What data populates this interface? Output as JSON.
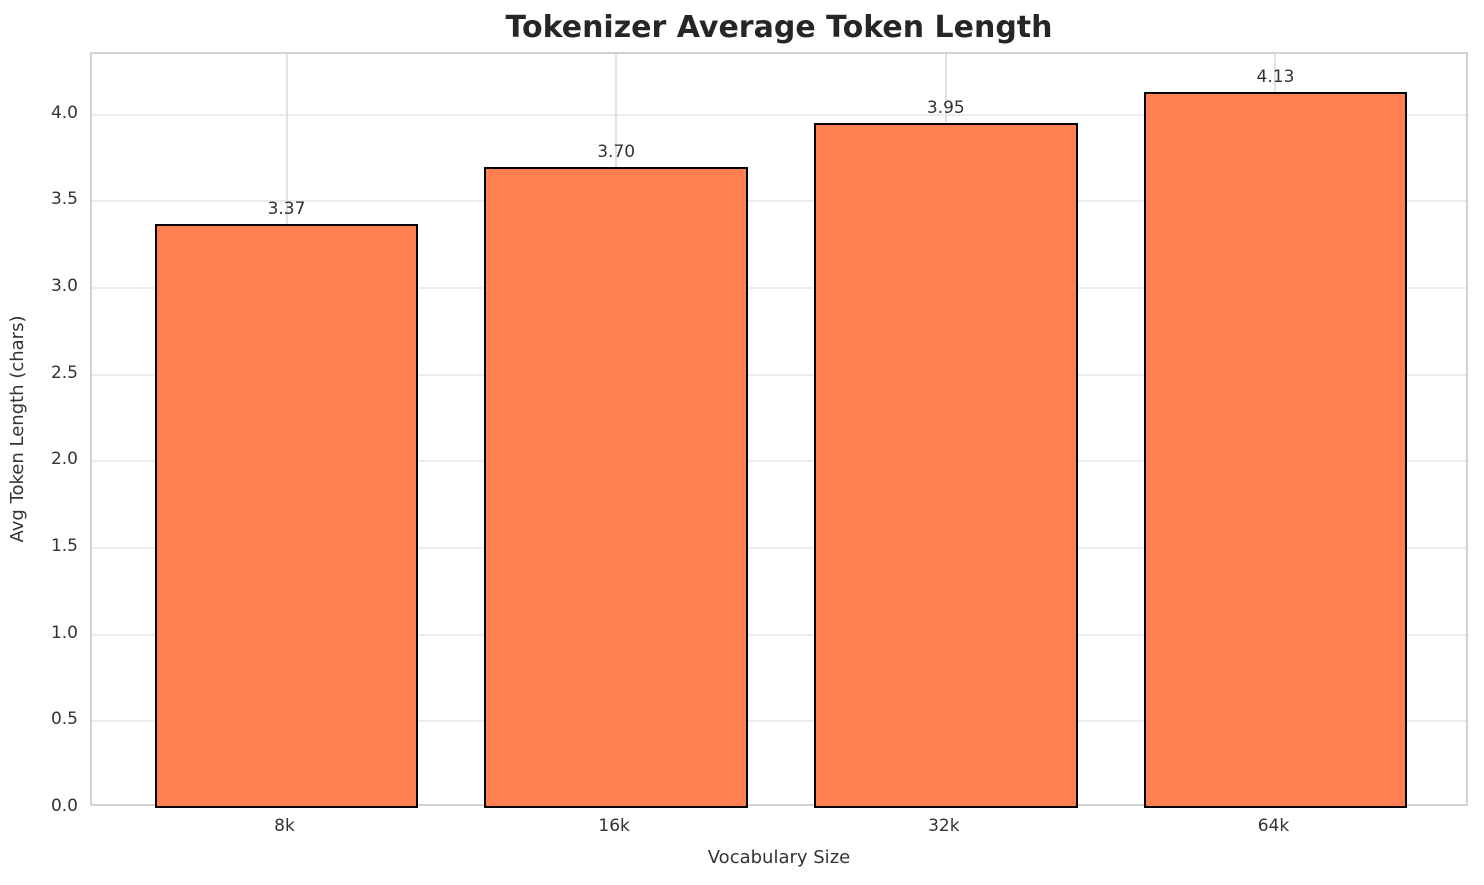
{
  "chart_data": {
    "type": "bar",
    "title": "Tokenizer Average Token Length",
    "xlabel": "Vocabulary Size",
    "ylabel": "Avg Token Length (chars)",
    "categories": [
      "8k",
      "16k",
      "32k",
      "64k"
    ],
    "values": [
      3.37,
      3.7,
      3.95,
      4.13
    ],
    "value_labels": [
      "3.37",
      "3.70",
      "3.95",
      "4.13"
    ],
    "yticks": [
      0.0,
      0.5,
      1.0,
      1.5,
      2.0,
      2.5,
      3.0,
      3.5,
      4.0
    ],
    "ytick_labels": [
      "0.0",
      "0.5",
      "1.0",
      "1.5",
      "2.0",
      "2.5",
      "3.0",
      "3.5",
      "4.0"
    ],
    "ylim": [
      0,
      4.35
    ],
    "grid": true,
    "legend": null,
    "bar_color": "#FF7F50",
    "bar_edge_color": "#000000"
  },
  "colors": {
    "figure_background": "#ffffff",
    "plot_background": "#ffffff",
    "spine": "#d2d2d2",
    "gridline_h": "#ececec",
    "gridline_v": "#e2e2e2",
    "title_text": "#262626",
    "tick_text": "#333333"
  }
}
